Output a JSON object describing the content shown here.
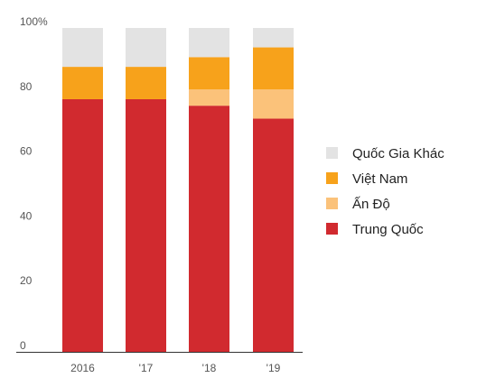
{
  "chart_data": {
    "type": "bar",
    "stacked": true,
    "categories": [
      "2016",
      "'17",
      "'18",
      "'19"
    ],
    "series": [
      {
        "name": "Trung Quốc",
        "color": "#d12a2f",
        "values": [
          78,
          78,
          76,
          72
        ]
      },
      {
        "name": "Ấn Độ",
        "color": "#fbc27a",
        "values": [
          0,
          0,
          5,
          9
        ]
      },
      {
        "name": "Việt Nam",
        "color": "#f7a21b",
        "values": [
          10,
          10,
          10,
          13
        ]
      },
      {
        "name": "Quốc Gia Khác",
        "color": "#e3e3e3",
        "values": [
          12,
          12,
          9,
          6
        ]
      }
    ],
    "yticks": [
      {
        "value": 0,
        "label": "0"
      },
      {
        "value": 20,
        "label": "20"
      },
      {
        "value": 40,
        "label": "40"
      },
      {
        "value": 60,
        "label": "60"
      },
      {
        "value": 80,
        "label": "80"
      },
      {
        "value": 100,
        "label": "100%"
      }
    ],
    "ylim": [
      0,
      100
    ],
    "grid": false,
    "legend_position": "right",
    "legend_order": [
      "Quốc Gia Khác",
      "Việt Nam",
      "Ấn Độ",
      "Trung Quốc"
    ],
    "title": "",
    "xlabel": "",
    "ylabel": ""
  }
}
